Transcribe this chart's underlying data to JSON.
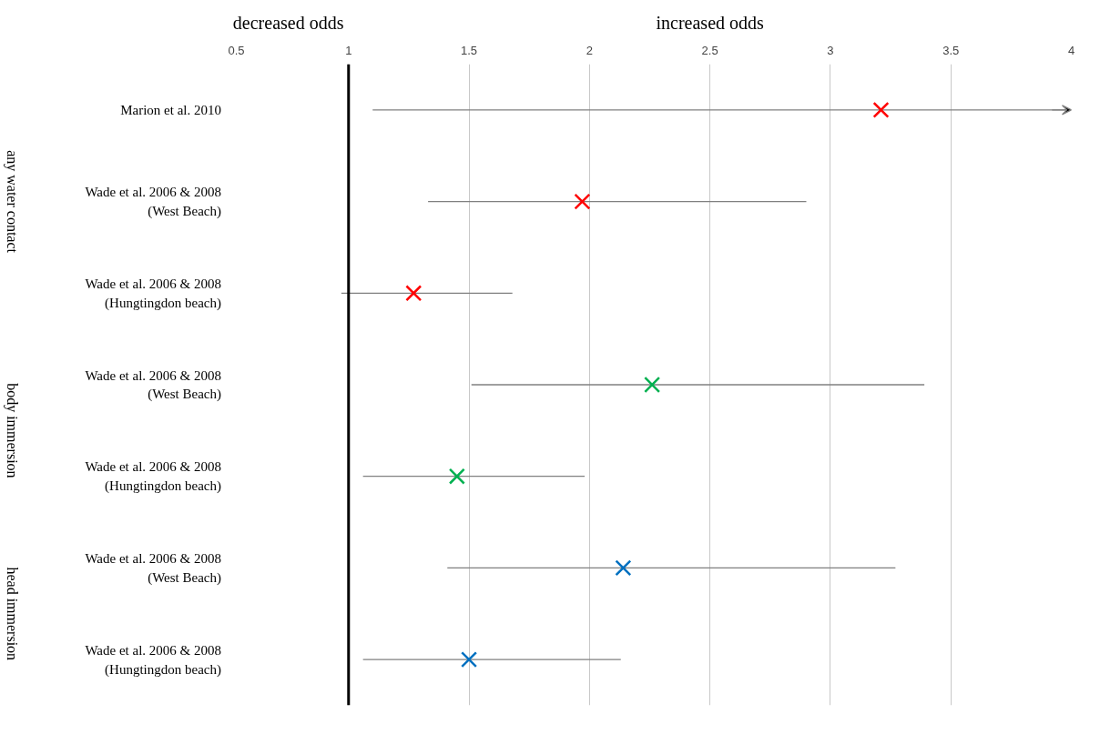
{
  "chart_data": {
    "type": "scatter",
    "orientation": "horizontal",
    "categories": [
      "Marion et al. 2010",
      "Wade et al. 2006 & 2008\n(West Beach)",
      "Wade et al. 2006 & 2008\n(Hungtingdon beach)",
      "Wade et al. 2006 & 2008\n(West Beach)",
      "Wade et al. 2006 & 2008\n(Hungtingdon beach)",
      "Wade et al. 2006 & 2008\n(West Beach)",
      "Wade et al. 2006 & 2008\n(Hungtingdon beach)"
    ],
    "values": [
      3.21,
      1.97,
      1.27,
      2.26,
      1.45,
      2.14,
      1.5
    ],
    "errors": [
      [
        1.1,
        4
      ],
      [
        1.33,
        2.9
      ],
      [
        0.97,
        1.68
      ],
      [
        1.51,
        3.39
      ],
      [
        1.06,
        1.98
      ],
      [
        1.41,
        3.27
      ],
      [
        1.06,
        2.13
      ]
    ],
    "colors": [
      "#ff0000",
      "#ff0000",
      "#ff0000",
      "#00b050",
      "#00b050",
      "#0070c0",
      "#0070c0"
    ],
    "marker": "cross",
    "xlim": [
      0.5,
      4
    ],
    "xticks": [
      0.5,
      1,
      1.5,
      2,
      2.5,
      3,
      3.5,
      4
    ],
    "grid": "x",
    "ref_lines": [
      {
        "axis": "x",
        "value": 1,
        "label": null,
        "color": "#000000"
      }
    ],
    "annotations": [
      "decreased odds",
      "increased odds",
      "any water contact",
      "body immersion",
      "head immersion"
    ]
  }
}
